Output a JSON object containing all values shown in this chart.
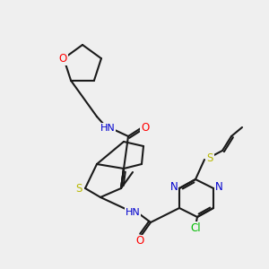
{
  "bg_color": "#efefef",
  "bond_color": "#1a1a1a",
  "atom_colors": {
    "O": "#ff0000",
    "N": "#0000cd",
    "S": "#b8b800",
    "Cl": "#00bb00",
    "H_color": "#4a9898",
    "C": "#1a1a1a"
  },
  "figsize": [
    3.0,
    3.0
  ],
  "dpi": 100
}
